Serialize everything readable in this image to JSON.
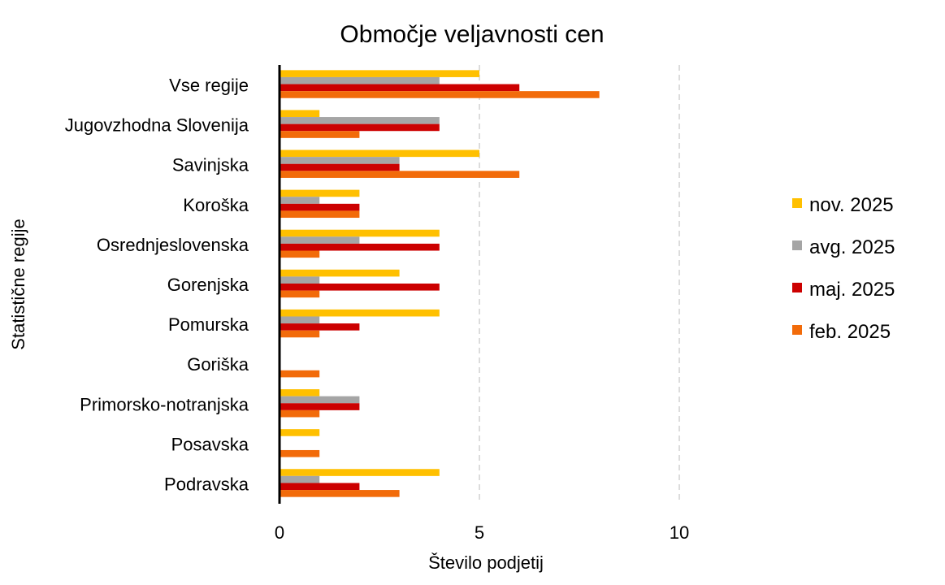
{
  "chart_data": {
    "type": "bar",
    "orientation": "horizontal",
    "title": "Območje veljavnosti cen",
    "xlabel": "Število podjetij",
    "ylabel": "Statistične regije",
    "xlim": [
      0,
      12
    ],
    "xticks": [
      0,
      5,
      10
    ],
    "grid": "vertical dashed",
    "legend_position": "right",
    "categories": [
      "Vse regije",
      "Jugovzhodna Slovenija",
      "Savinjska",
      "Koroška",
      "Osrednjeslovenska",
      "Gorenjska",
      "Pomurska",
      "Goriška",
      "Primorsko-notranjska",
      "Posavska",
      "Podravska"
    ],
    "series": [
      {
        "name": "nov. 2025",
        "color": "#FFC000",
        "values": [
          5,
          1,
          5,
          2,
          4,
          3,
          4,
          0,
          1,
          1,
          4
        ]
      },
      {
        "name": "avg. 2025",
        "color": "#A5A5A5",
        "values": [
          4,
          4,
          3,
          1,
          2,
          1,
          1,
          0,
          2,
          0,
          1
        ]
      },
      {
        "name": "maj. 2025",
        "color": "#CC0000",
        "values": [
          6,
          4,
          3,
          2,
          4,
          4,
          2,
          0,
          2,
          0,
          2
        ]
      },
      {
        "name": "feb. 2025",
        "color": "#F26B0A",
        "values": [
          8,
          2,
          6,
          2,
          1,
          1,
          1,
          1,
          1,
          1,
          3
        ]
      }
    ]
  }
}
